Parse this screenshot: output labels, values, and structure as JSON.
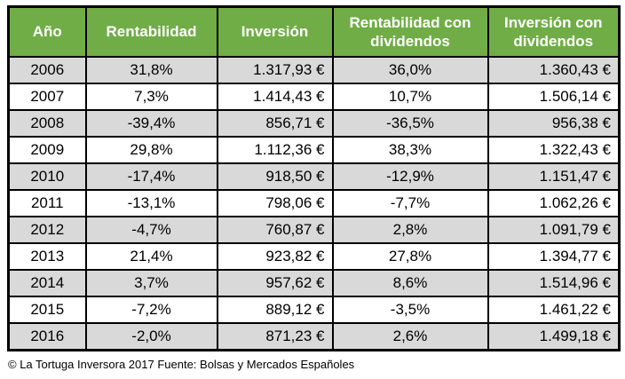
{
  "colors": {
    "header_bg": "#70AD47",
    "header_text": "#FFFFFF",
    "row_bg": "#FFFFFF",
    "row_alt_bg": "#D9D9D9",
    "border": "#000000"
  },
  "table": {
    "columns": [
      {
        "key": "ano",
        "label": "Año",
        "align": "center"
      },
      {
        "key": "rentabilidad",
        "label": "Rentabilidad",
        "align": "center"
      },
      {
        "key": "inversion",
        "label": "Inversión",
        "align": "right"
      },
      {
        "key": "rentabilidad-con-dividendos",
        "label": "Rentabilidad con dividendos",
        "align": "center"
      },
      {
        "key": "inversion-con-dividendos",
        "label": "Inversión con dividendos",
        "align": "right"
      }
    ],
    "rows": [
      [
        "2006",
        "31,8%",
        "1.317,93 €",
        "36,0%",
        "1.360,43 €"
      ],
      [
        "2007",
        "7,3%",
        "1.414,43 €",
        "10,7%",
        "1.506,14 €"
      ],
      [
        "2008",
        "-39,4%",
        "856,71 €",
        "-36,5%",
        "956,38 €"
      ],
      [
        "2009",
        "29,8%",
        "1.112,36 €",
        "38,3%",
        "1.322,43 €"
      ],
      [
        "2010",
        "-17,4%",
        "918,50 €",
        "-12,9%",
        "1.151,47 €"
      ],
      [
        "2011",
        "-13,1%",
        "798,06 €",
        "-7,7%",
        "1.062,26 €"
      ],
      [
        "2012",
        "-4,7%",
        "760,87 €",
        "2,8%",
        "1.091,79 €"
      ],
      [
        "2013",
        "21,4%",
        "923,82 €",
        "27,8%",
        "1.394,77 €"
      ],
      [
        "2014",
        "3,7%",
        "957,62 €",
        "8,6%",
        "1.514,96 €"
      ],
      [
        "2015",
        "-7,2%",
        "889,12 €",
        "-3,5%",
        "1.461,22 €"
      ],
      [
        "2016",
        "-2,0%",
        "871,23 €",
        "2,6%",
        "1.499,18 €"
      ]
    ]
  },
  "chart_data": {
    "type": "table",
    "title": "",
    "categories": [
      2006,
      2007,
      2008,
      2009,
      2010,
      2011,
      2012,
      2013,
      2014,
      2015,
      2016
    ],
    "series": [
      {
        "name": "Rentabilidad (%)",
        "values": [
          31.8,
          7.3,
          -39.4,
          29.8,
          -17.4,
          -13.1,
          -4.7,
          21.4,
          3.7,
          -7.2,
          -2.0
        ]
      },
      {
        "name": "Inversión (€)",
        "values": [
          1317.93,
          1414.43,
          856.71,
          1112.36,
          918.5,
          798.06,
          760.87,
          923.82,
          957.62,
          889.12,
          871.23
        ]
      },
      {
        "name": "Rentabilidad con dividendos (%)",
        "values": [
          36.0,
          10.7,
          -36.5,
          38.3,
          -12.9,
          -7.7,
          2.8,
          27.8,
          8.6,
          -3.5,
          2.6
        ]
      },
      {
        "name": "Inversión con dividendos (€)",
        "values": [
          1360.43,
          1506.14,
          956.38,
          1322.43,
          1151.47,
          1062.26,
          1091.79,
          1394.77,
          1514.96,
          1461.22,
          1499.18
        ]
      }
    ]
  },
  "footer": {
    "text": "© La Tortuga Inversora 2017 Fuente: Bolsas y Mercados Españoles"
  }
}
